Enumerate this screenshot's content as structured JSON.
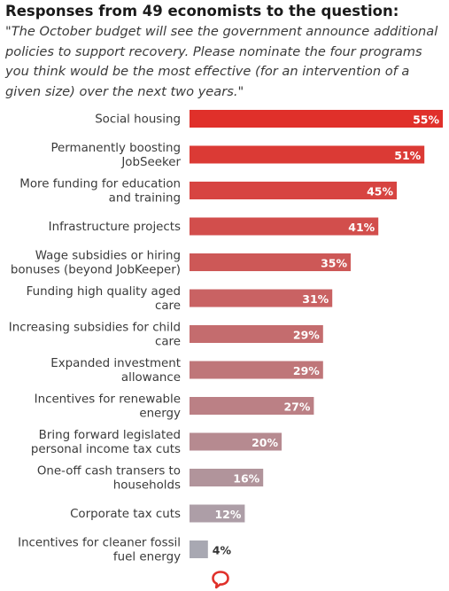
{
  "title": "Responses from 49 economists to the question:",
  "question": "\"The October budget will see the government announce additional policies to support recovery. Please nominate the four programs you think would be the most effective (for an intervention of a given size) over the next two years.\"",
  "colors": {
    "bar_top": "#e0302a",
    "bar_bottom": "#a8a8b2",
    "value_label_light": "#ffffff",
    "value_label_dark": "#333333",
    "logo": "#e0302a"
  },
  "logo_icon": "speech-bubble-logo",
  "chart_data": {
    "type": "bar",
    "orientation": "horizontal",
    "title": "",
    "xlabel": "",
    "ylabel": "",
    "value_suffix": "%",
    "xlim": [
      0,
      55
    ],
    "grid": false,
    "legend": "none",
    "categories": [
      [
        "Social housing"
      ],
      [
        "Permanently boosting",
        "JobSeeker"
      ],
      [
        "More funding for education",
        "and training"
      ],
      [
        "Infrastructure projects"
      ],
      [
        "Wage subsidies or hiring",
        "bonuses (beyond JobKeeper)"
      ],
      [
        "Funding high quality aged",
        "care"
      ],
      [
        "Increasing subsidies for child",
        "care"
      ],
      [
        "Expanded investment",
        "allowance"
      ],
      [
        "Incentives for renewable",
        "energy"
      ],
      [
        "Bring forward legislated",
        "personal income tax cuts"
      ],
      [
        "One-off cash transers to",
        "households"
      ],
      [
        "Corporate tax cuts"
      ],
      [
        "Incentives for cleaner fossil",
        "fuel energy"
      ]
    ],
    "values": [
      55,
      51,
      45,
      41,
      35,
      31,
      29,
      29,
      27,
      20,
      16,
      12,
      4
    ],
    "value_labels": [
      "55%",
      "51%",
      "45%",
      "41%",
      "35%",
      "31%",
      "29%",
      "29%",
      "27%",
      "20%",
      "16%",
      "12%",
      "4%"
    ]
  }
}
